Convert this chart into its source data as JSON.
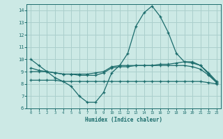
{
  "xlabel": "Humidex (Indice chaleur)",
  "bg_color": "#cce9e5",
  "grid_color": "#aacfcc",
  "line_color": "#1a6b6b",
  "xlim": [
    -0.5,
    23.5
  ],
  "ylim": [
    6,
    14.5
  ],
  "yticks": [
    6,
    7,
    8,
    9,
    10,
    11,
    12,
    13,
    14
  ],
  "xticks": [
    0,
    1,
    2,
    3,
    4,
    5,
    6,
    7,
    8,
    9,
    10,
    11,
    12,
    13,
    14,
    15,
    16,
    17,
    18,
    19,
    20,
    21,
    22,
    23
  ],
  "series1_x": [
    0,
    1,
    2,
    3,
    4,
    5,
    6,
    7,
    8,
    9,
    10,
    11,
    12,
    13,
    14,
    15,
    16,
    17,
    18,
    19,
    20,
    21,
    22,
    23
  ],
  "series1_y": [
    10.0,
    9.5,
    9.0,
    8.5,
    8.2,
    7.8,
    7.0,
    6.5,
    6.5,
    7.3,
    8.9,
    9.5,
    10.5,
    12.7,
    13.8,
    14.35,
    13.5,
    12.2,
    10.5,
    9.8,
    9.7,
    9.5,
    8.8,
    8.1
  ],
  "series2_x": [
    0,
    1,
    2,
    3,
    4,
    5,
    6,
    7,
    8,
    9,
    10,
    11,
    12,
    13,
    14,
    15,
    16,
    17,
    18,
    19,
    20,
    21,
    22,
    23
  ],
  "series2_y": [
    9.3,
    9.1,
    9.0,
    8.9,
    8.8,
    8.8,
    8.8,
    8.8,
    8.9,
    9.0,
    9.4,
    9.5,
    9.5,
    9.5,
    9.5,
    9.5,
    9.6,
    9.6,
    9.7,
    9.8,
    9.8,
    9.5,
    8.9,
    8.2
  ],
  "series3_x": [
    0,
    1,
    2,
    3,
    4,
    5,
    6,
    7,
    8,
    9,
    10,
    11,
    12,
    13,
    14,
    15,
    16,
    17,
    18,
    19,
    20,
    21,
    22,
    23
  ],
  "series3_y": [
    9.0,
    9.0,
    9.0,
    8.9,
    8.8,
    8.8,
    8.7,
    8.7,
    8.7,
    8.9,
    9.3,
    9.4,
    9.4,
    9.5,
    9.5,
    9.5,
    9.5,
    9.5,
    9.5,
    9.5,
    9.4,
    9.2,
    8.7,
    8.1
  ],
  "series4_x": [
    0,
    1,
    2,
    3,
    4,
    5,
    6,
    7,
    8,
    9,
    10,
    11,
    12,
    13,
    14,
    15,
    16,
    17,
    18,
    19,
    20,
    21,
    22,
    23
  ],
  "series4_y": [
    8.3,
    8.3,
    8.3,
    8.3,
    8.2,
    8.2,
    8.2,
    8.2,
    8.2,
    8.2,
    8.2,
    8.2,
    8.2,
    8.2,
    8.2,
    8.2,
    8.2,
    8.2,
    8.2,
    8.2,
    8.2,
    8.2,
    8.1,
    8.0
  ]
}
